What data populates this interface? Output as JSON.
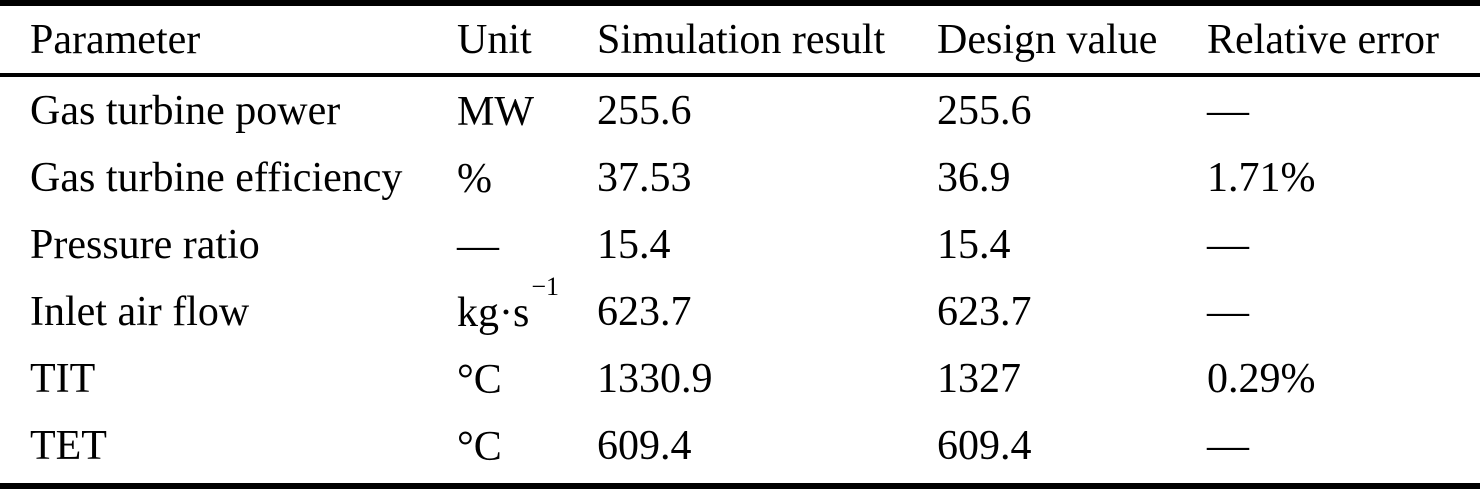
{
  "table": {
    "columns": {
      "parameter": "Parameter",
      "unit": "Unit",
      "simulation": "Simulation result",
      "design": "Design value",
      "error": "Relative error"
    },
    "rows": [
      {
        "parameter": "Gas turbine power",
        "unit": "MW",
        "unit_sup": "",
        "simulation": "255.6",
        "design": "255.6",
        "error": "—"
      },
      {
        "parameter": "Gas turbine efficiency",
        "unit": "%",
        "unit_sup": "",
        "simulation": "37.53",
        "design": "36.9",
        "error": "1.71%"
      },
      {
        "parameter": "Pressure ratio",
        "unit": "—",
        "unit_sup": "",
        "simulation": "15.4",
        "design": "15.4",
        "error": "—"
      },
      {
        "parameter": "Inlet air flow",
        "unit": "kg·s",
        "unit_sup": "−1",
        "simulation": "623.7",
        "design": "623.7",
        "error": "—"
      },
      {
        "parameter": "TIT",
        "unit": "°C",
        "unit_sup": "",
        "simulation": "1330.9",
        "design": "1327",
        "error": "0.29%"
      },
      {
        "parameter": "TET",
        "unit": "°C",
        "unit_sup": "",
        "simulation": "609.4",
        "design": "609.4",
        "error": "—"
      }
    ]
  }
}
